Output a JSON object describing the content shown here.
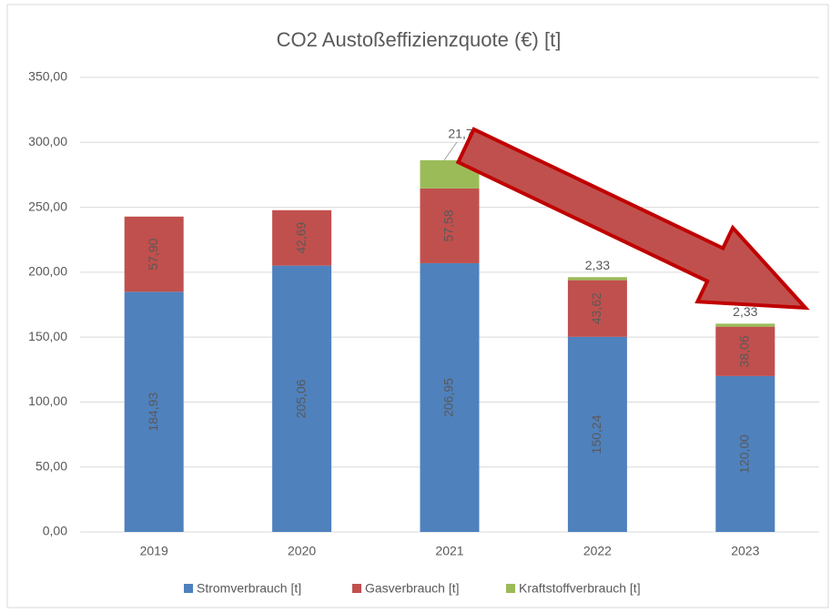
{
  "chart_data": {
    "type": "stacked_bar",
    "title": "CO2 Austoßeffizienzquote (€) [t]",
    "categories": [
      "2019",
      "2020",
      "2021",
      "2022",
      "2023"
    ],
    "series": [
      {
        "name": "Stromverbrauch [t]",
        "color": "#4f81bd",
        "values": [
          184.93,
          205.06,
          206.95,
          150.24,
          120.0
        ],
        "value_labels": [
          "184,93",
          "205,06",
          "206,95",
          "150,24",
          "120,00"
        ]
      },
      {
        "name": "Gasverbrauch [t]",
        "color": "#c0504d",
        "values": [
          57.9,
          42.69,
          57.58,
          43.62,
          38.06
        ],
        "value_labels": [
          "57,90",
          "42,69",
          "57,58",
          "43,62",
          "38,06"
        ]
      },
      {
        "name": "Kraftstoffverbrauch [t]",
        "color": "#9bbb59",
        "values": [
          null,
          null,
          21.7,
          2.33,
          2.33
        ],
        "value_labels": [
          null,
          null,
          "21,7",
          "2,33",
          "2,33"
        ]
      }
    ],
    "ylim": [
      0,
      350
    ],
    "yticks": [
      {
        "value": 0,
        "label": "0,00"
      },
      {
        "value": 50,
        "label": "50,00"
      },
      {
        "value": 100,
        "label": "100,00"
      },
      {
        "value": 150,
        "label": "150,00"
      },
      {
        "value": 200,
        "label": "200,00"
      },
      {
        "value": 250,
        "label": "250,00"
      },
      {
        "value": 300,
        "label": "300,00"
      },
      {
        "value": 350,
        "label": "350,00"
      }
    ],
    "grid": true,
    "legend": "bottom"
  }
}
